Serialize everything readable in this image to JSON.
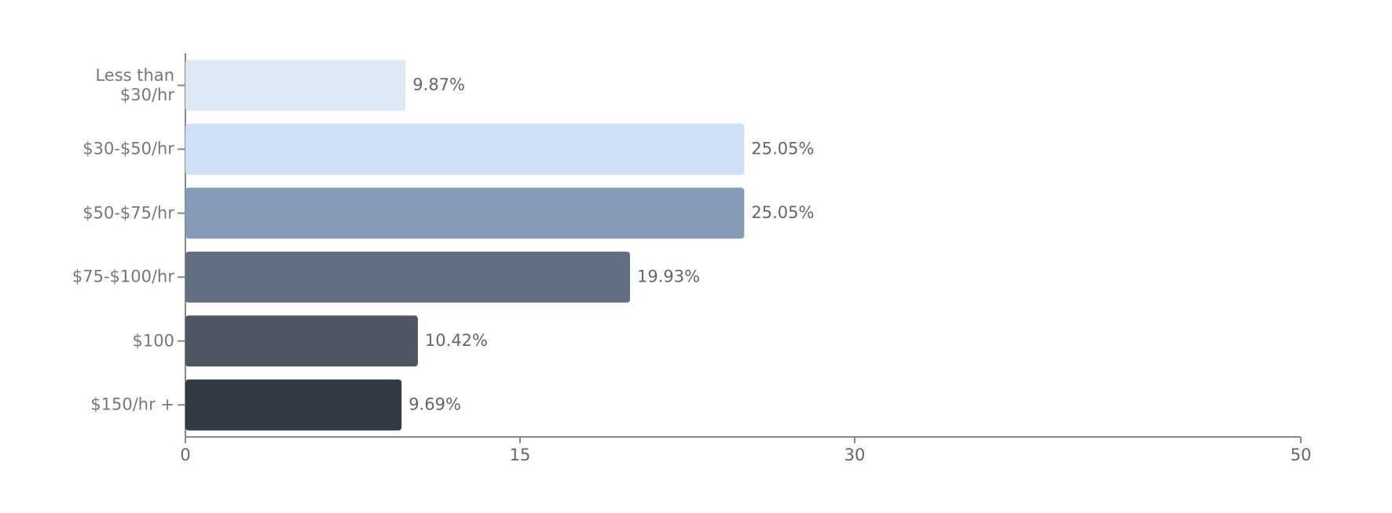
{
  "chart_data": {
    "type": "bar",
    "orientation": "horizontal",
    "categories": [
      "Less than $30/hr",
      "$30-$50/hr",
      "$50-$75/hr",
      "$75-$100/hr",
      "$100",
      "$150/hr +"
    ],
    "values": [
      9.87,
      25.05,
      25.05,
      19.93,
      10.42,
      9.69
    ],
    "value_labels": [
      "9.87%",
      "25.05%",
      "25.05%",
      "19.93%",
      "10.42%",
      "9.69%"
    ],
    "colors": [
      "#dfe9f6",
      "#cfdff4",
      "#879bb8",
      "#626f82",
      "#4f5561",
      "#343a44"
    ],
    "xlim": [
      0,
      50
    ],
    "xticks": [
      0,
      15,
      30,
      50
    ],
    "grid": false
  }
}
